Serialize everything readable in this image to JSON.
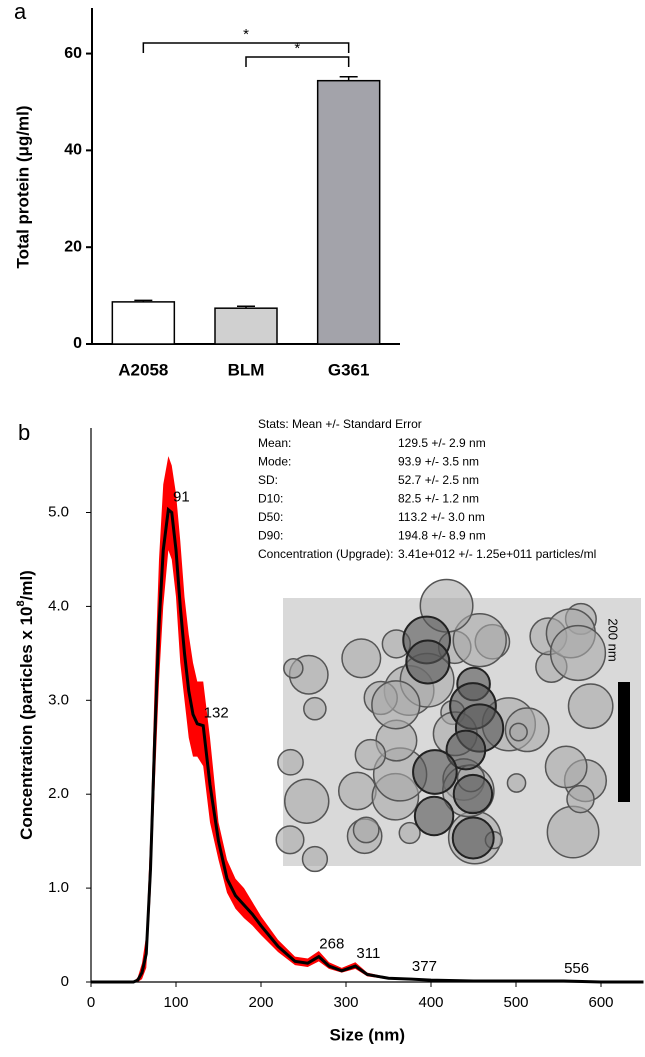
{
  "chart_data": [
    {
      "type": "bar",
      "panel_label": "a",
      "y_label": "Total protein (μg/ml)",
      "categories": [
        "A2058",
        "BLM",
        "G361"
      ],
      "values": [
        8.7,
        7.4,
        54.4
      ],
      "errors": [
        0.3,
        0.4,
        0.8
      ],
      "colors": [
        "#ffffff",
        "#d0d0d0",
        "#a3a3aa"
      ],
      "ylim": [
        0,
        69
      ],
      "yticks": [
        0,
        20,
        40,
        60
      ],
      "significance": [
        {
          "pair": [
            "A2058",
            "G361"
          ],
          "label": "*"
        },
        {
          "pair": [
            "BLM",
            "G361"
          ],
          "label": "*"
        }
      ]
    },
    {
      "type": "line",
      "panel_label": "b",
      "x_label": "Size (nm)",
      "y_label": "Concentration  (particles x 10",
      "y_label_sup": "8",
      "y_label_end": "/ml)",
      "x": [
        0,
        50,
        55,
        60,
        65,
        70,
        75,
        80,
        85,
        91,
        95,
        100,
        105,
        110,
        115,
        120,
        125,
        132,
        140,
        150,
        160,
        170,
        180,
        190,
        200,
        220,
        240,
        255,
        268,
        280,
        295,
        311,
        325,
        350,
        377,
        400,
        450,
        500,
        556,
        600,
        650
      ],
      "values": [
        0,
        0,
        0.02,
        0.1,
        0.3,
        1.2,
        2.6,
        3.8,
        4.6,
        5.03,
        5.0,
        4.6,
        4.0,
        3.5,
        3.1,
        2.85,
        2.75,
        2.73,
        2.1,
        1.5,
        1.1,
        0.92,
        0.82,
        0.72,
        0.6,
        0.38,
        0.22,
        0.2,
        0.27,
        0.17,
        0.12,
        0.17,
        0.08,
        0.04,
        0.03,
        0.02,
        0.01,
        0.01,
        0.01,
        0,
        0
      ],
      "upper": [
        0,
        0,
        0.05,
        0.2,
        0.5,
        1.6,
        3.2,
        4.5,
        5.3,
        5.6,
        5.5,
        5.2,
        4.7,
        4.1,
        3.7,
        3.4,
        3.2,
        3.2,
        2.6,
        1.7,
        1.3,
        1.1,
        1.0,
        0.85,
        0.7,
        0.45,
        0.27,
        0.25,
        0.33,
        0.21,
        0.15,
        0.21,
        0.1,
        0.05,
        0.04,
        0.03,
        0.02,
        0.02,
        0.02,
        0.01,
        0.01
      ],
      "lower": [
        0,
        0,
        0,
        0.03,
        0.15,
        0.9,
        2.1,
        3.2,
        4.0,
        4.6,
        4.5,
        4.1,
        3.4,
        3.0,
        2.6,
        2.4,
        2.4,
        2.3,
        1.7,
        1.3,
        0.95,
        0.78,
        0.68,
        0.6,
        0.5,
        0.32,
        0.18,
        0.16,
        0.22,
        0.14,
        0.1,
        0.14,
        0.06,
        0.03,
        0.02,
        0.01,
        0,
        0,
        0,
        0,
        0
      ],
      "color": "#000000",
      "band_color": "#ff0000",
      "peak_color": "#1a1ad6",
      "peaks": [
        91,
        132,
        268,
        311,
        377,
        556
      ],
      "xlim": [
        0,
        650
      ],
      "xticks": [
        0,
        100,
        200,
        300,
        400,
        500,
        600
      ],
      "ylim": [
        0,
        5.9
      ],
      "yticks": [
        0,
        {
          "value": 1,
          "label": "1.0"
        },
        {
          "value": 2,
          "label": "2.0"
        },
        {
          "value": 3,
          "label": "3.0"
        },
        {
          "value": 4,
          "label": "4.0"
        },
        {
          "value": 5,
          "label": "5.0"
        }
      ],
      "stats_title": "Stats: Mean +/- Standard Error",
      "stats": [
        [
          "Mean:",
          "129.5 +/- 2.9 nm"
        ],
        [
          "Mode:",
          "93.9 +/- 3.5 nm"
        ],
        [
          "SD:",
          "52.7 +/- 2.5 nm"
        ],
        [
          "D10:",
          "82.5 +/- 1.2 nm"
        ],
        [
          "D50:",
          "113.2 +/- 3.0 nm"
        ],
        [
          "D90:",
          "194.8 +/- 8.9 nm"
        ],
        [
          "Concentration (Upgrade):",
          "3.41e+012 +/- 1.25e+011 particles/ml"
        ]
      ],
      "inset_scale_label": "200 nm"
    }
  ]
}
